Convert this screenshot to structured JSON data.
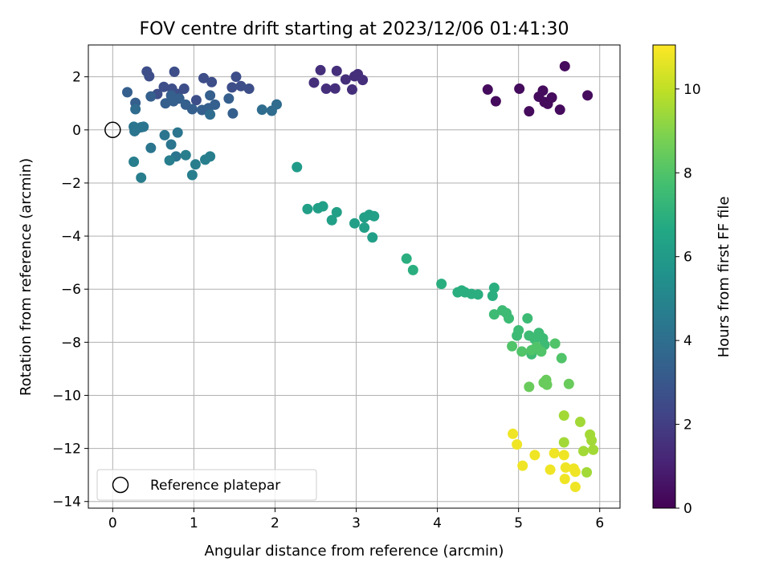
{
  "chart_data": {
    "type": "scatter",
    "title": "FOV centre drift starting at 2023/12/06 01:41:30",
    "xlabel": "Angular distance from reference (arcmin)",
    "ylabel": "Rotation from reference (arcmin)",
    "xlim": [
      -0.3,
      6.25
    ],
    "ylim": [
      -14.25,
      3.2
    ],
    "xticks": [
      0,
      1,
      2,
      3,
      4,
      5,
      6
    ],
    "yticks": [
      2,
      0,
      -2,
      -4,
      -6,
      -8,
      -10,
      -12,
      -14
    ],
    "grid": true,
    "legend": {
      "position": "lower-left",
      "entries": [
        {
          "label": "Reference platepar",
          "marker": "open-circle"
        }
      ]
    },
    "colorbar": {
      "label": "Hours from first FF file",
      "colormap": "viridis",
      "range": [
        0,
        11.05
      ],
      "ticks": [
        0,
        2,
        4,
        6,
        8,
        10
      ]
    },
    "reference_point": {
      "x": 0,
      "y": 0
    },
    "points": [
      [
        4.62,
        1.52,
        0.3
      ],
      [
        4.72,
        1.08,
        0.3
      ],
      [
        5.01,
        1.55,
        0.3
      ],
      [
        5.13,
        0.7,
        0.3
      ],
      [
        5.25,
        1.25,
        0.3
      ],
      [
        5.3,
        1.48,
        0.3
      ],
      [
        5.32,
        1.05,
        0.3
      ],
      [
        5.36,
        0.98,
        0.3
      ],
      [
        5.41,
        1.22,
        0.3
      ],
      [
        5.51,
        0.76,
        0.3
      ],
      [
        5.57,
        2.4,
        0.3
      ],
      [
        5.85,
        1.3,
        0.3
      ],
      [
        2.48,
        1.78,
        1.5
      ],
      [
        2.56,
        2.25,
        1.5
      ],
      [
        2.63,
        1.55,
        1.5
      ],
      [
        2.74,
        1.56,
        1.5
      ],
      [
        2.76,
        2.22,
        1.5
      ],
      [
        2.87,
        1.9,
        1.5
      ],
      [
        2.95,
        1.52,
        1.5
      ],
      [
        2.98,
        2.02,
        1.5
      ],
      [
        3.02,
        2.1,
        1.5
      ],
      [
        3.08,
        1.88,
        1.5
      ],
      [
        0.42,
        2.2,
        2.6
      ],
      [
        0.45,
        2.02,
        2.6
      ],
      [
        0.55,
        1.35,
        2.6
      ],
      [
        0.63,
        1.62,
        2.6
      ],
      [
        0.73,
        1.55,
        2.6
      ],
      [
        0.76,
        2.19,
        2.6
      ],
      [
        0.8,
        1.35,
        2.6
      ],
      [
        0.88,
        1.55,
        2.6
      ],
      [
        1.03,
        1.12,
        2.6
      ],
      [
        1.12,
        1.95,
        2.6
      ],
      [
        1.22,
        1.8,
        2.6
      ],
      [
        1.52,
        2.0,
        2.6
      ],
      [
        1.58,
        1.65,
        2.6
      ],
      [
        1.68,
        1.55,
        2.6
      ],
      [
        1.47,
        1.6,
        2.6
      ],
      [
        0.18,
        1.42,
        3.3
      ],
      [
        0.28,
        1.02,
        3.3
      ],
      [
        0.47,
        1.26,
        3.3
      ],
      [
        0.65,
        1.0,
        3.3
      ],
      [
        0.72,
        1.3,
        3.3
      ],
      [
        0.75,
        1.08,
        3.3
      ],
      [
        0.82,
        1.18,
        3.3
      ],
      [
        0.9,
        0.95,
        3.3
      ],
      [
        0.98,
        0.78,
        3.3
      ],
      [
        1.1,
        0.75,
        3.3
      ],
      [
        1.18,
        0.82,
        3.3
      ],
      [
        1.2,
        1.3,
        3.3
      ],
      [
        1.26,
        0.95,
        3.3
      ],
      [
        1.43,
        1.18,
        3.3
      ],
      [
        1.48,
        0.62,
        3.3
      ],
      [
        0.28,
        0.78,
        3.9
      ],
      [
        1.2,
        0.58,
        3.9
      ],
      [
        1.84,
        0.76,
        3.9
      ],
      [
        1.96,
        0.72,
        3.9
      ],
      [
        2.02,
        0.96,
        3.9
      ],
      [
        0.26,
        0.12,
        4.3
      ],
      [
        0.3,
        0.05,
        4.3
      ],
      [
        0.35,
        0.1,
        4.3
      ],
      [
        0.38,
        0.12,
        4.3
      ],
      [
        0.27,
        -0.05,
        4.3
      ],
      [
        0.64,
        -0.2,
        4.3
      ],
      [
        0.72,
        -0.55,
        4.3
      ],
      [
        0.8,
        -0.1,
        4.3
      ],
      [
        0.47,
        -0.68,
        4.3
      ],
      [
        0.78,
        -1.0,
        4.3
      ],
      [
        0.26,
        -1.2,
        4.7
      ],
      [
        0.35,
        -1.8,
        4.7
      ],
      [
        0.7,
        -1.15,
        4.7
      ],
      [
        0.9,
        -0.95,
        4.7
      ],
      [
        0.98,
        -1.7,
        4.7
      ],
      [
        1.02,
        -1.3,
        4.7
      ],
      [
        1.14,
        -1.12,
        4.7
      ],
      [
        1.2,
        -1.0,
        4.7
      ],
      [
        2.27,
        -1.4,
        6.0
      ],
      [
        2.4,
        -2.98,
        6.2
      ],
      [
        2.53,
        -2.95,
        6.2
      ],
      [
        2.59,
        -2.88,
        6.2
      ],
      [
        2.7,
        -3.4,
        6.2
      ],
      [
        2.76,
        -3.1,
        6.2
      ],
      [
        2.98,
        -3.52,
        6.2
      ],
      [
        3.1,
        -3.3,
        6.2
      ],
      [
        3.1,
        -3.68,
        6.2
      ],
      [
        3.16,
        -3.2,
        6.2
      ],
      [
        3.22,
        -3.25,
        6.2
      ],
      [
        3.2,
        -4.05,
        6.2
      ],
      [
        3.62,
        -4.85,
        6.9
      ],
      [
        3.7,
        -5.28,
        6.9
      ],
      [
        4.05,
        -5.8,
        6.9
      ],
      [
        4.25,
        -6.12,
        6.9
      ],
      [
        4.3,
        -6.05,
        6.9
      ],
      [
        4.34,
        -6.12,
        6.9
      ],
      [
        4.42,
        -6.18,
        6.9
      ],
      [
        4.5,
        -6.2,
        6.9
      ],
      [
        4.68,
        -6.25,
        6.9
      ],
      [
        4.7,
        -5.95,
        6.9
      ],
      [
        4.7,
        -6.95,
        7.5
      ],
      [
        4.8,
        -6.8,
        7.5
      ],
      [
        4.85,
        -6.9,
        7.5
      ],
      [
        4.88,
        -7.1,
        7.5
      ],
      [
        4.98,
        -7.75,
        7.5
      ],
      [
        5.0,
        -7.55,
        7.5
      ],
      [
        5.11,
        -7.1,
        7.5
      ],
      [
        5.13,
        -7.75,
        7.5
      ],
      [
        5.16,
        -8.45,
        7.5
      ],
      [
        5.2,
        -7.88,
        7.5
      ],
      [
        5.25,
        -7.65,
        7.5
      ],
      [
        5.3,
        -7.85,
        7.5
      ],
      [
        5.32,
        -8.1,
        7.5
      ],
      [
        4.92,
        -8.15,
        8.0
      ],
      [
        5.04,
        -8.35,
        8.0
      ],
      [
        5.16,
        -8.3,
        8.0
      ],
      [
        5.22,
        -8.18,
        8.0
      ],
      [
        5.28,
        -8.35,
        8.0
      ],
      [
        5.45,
        -8.05,
        8.0
      ],
      [
        5.53,
        -8.6,
        8.0
      ],
      [
        5.13,
        -9.68,
        8.5
      ],
      [
        5.31,
        -9.52,
        8.5
      ],
      [
        5.34,
        -9.42,
        8.5
      ],
      [
        5.35,
        -9.6,
        8.5
      ],
      [
        5.62,
        -9.57,
        8.5
      ],
      [
        5.56,
        -10.76,
        9.5
      ],
      [
        5.56,
        -11.77,
        9.5
      ],
      [
        5.76,
        -11.0,
        9.5
      ],
      [
        5.88,
        -11.48,
        9.5
      ],
      [
        5.9,
        -11.7,
        9.5
      ],
      [
        5.92,
        -12.05,
        9.5
      ],
      [
        5.8,
        -12.1,
        9.5
      ],
      [
        5.84,
        -12.9,
        9.5
      ],
      [
        4.93,
        -11.45,
        10.8
      ],
      [
        4.98,
        -11.85,
        10.8
      ],
      [
        5.05,
        -12.65,
        10.8
      ],
      [
        5.2,
        -12.25,
        10.8
      ],
      [
        5.39,
        -12.8,
        10.8
      ],
      [
        5.44,
        -12.18,
        10.8
      ],
      [
        5.56,
        -12.25,
        10.8
      ],
      [
        5.58,
        -12.72,
        10.8
      ],
      [
        5.57,
        -13.15,
        10.8
      ],
      [
        5.68,
        -12.76,
        10.8
      ],
      [
        5.7,
        -12.88,
        10.8
      ],
      [
        5.7,
        -13.45,
        10.8
      ]
    ]
  }
}
